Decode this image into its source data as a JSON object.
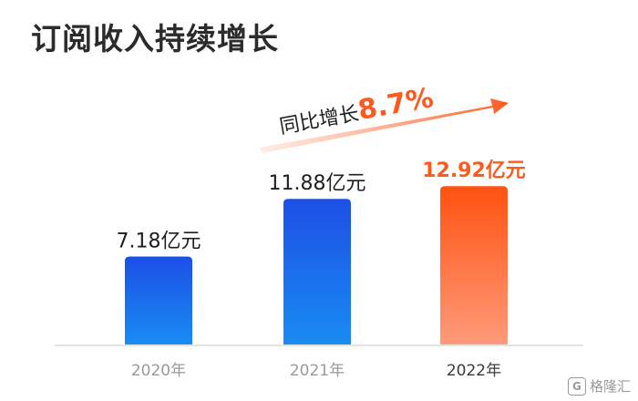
{
  "chart_data": {
    "type": "bar",
    "title": "订阅收入持续增长",
    "categories": [
      "2020年",
      "2021年",
      "2022年"
    ],
    "values": [
      7.18,
      11.88,
      12.92
    ],
    "value_labels": [
      "7.18亿元",
      "11.88亿元",
      "12.92亿元"
    ],
    "unit": "亿元",
    "highlight_index": 2,
    "annotation": {
      "text": "同比增长",
      "value": "8.7%"
    },
    "ylim": [
      0,
      14.5
    ],
    "grid": false,
    "colors": {
      "bar_normal_top": "#1c4fe6",
      "bar_normal_bottom": "#1a8cf2",
      "bar_highlight_top": "#ff5210",
      "bar_highlight_bottom": "#ff9a7a",
      "highlight_text": "#ff5a1e",
      "label_text": "#1f1f1f",
      "category_text": "#9a9a9a",
      "category_highlight_text": "#3a3a3a",
      "axis": "#e4e4e4",
      "arrow_start": "#ffe0d2",
      "arrow_end": "#ff5a1e"
    }
  },
  "watermark": {
    "text": "格隆汇",
    "logo_icon": "G"
  }
}
